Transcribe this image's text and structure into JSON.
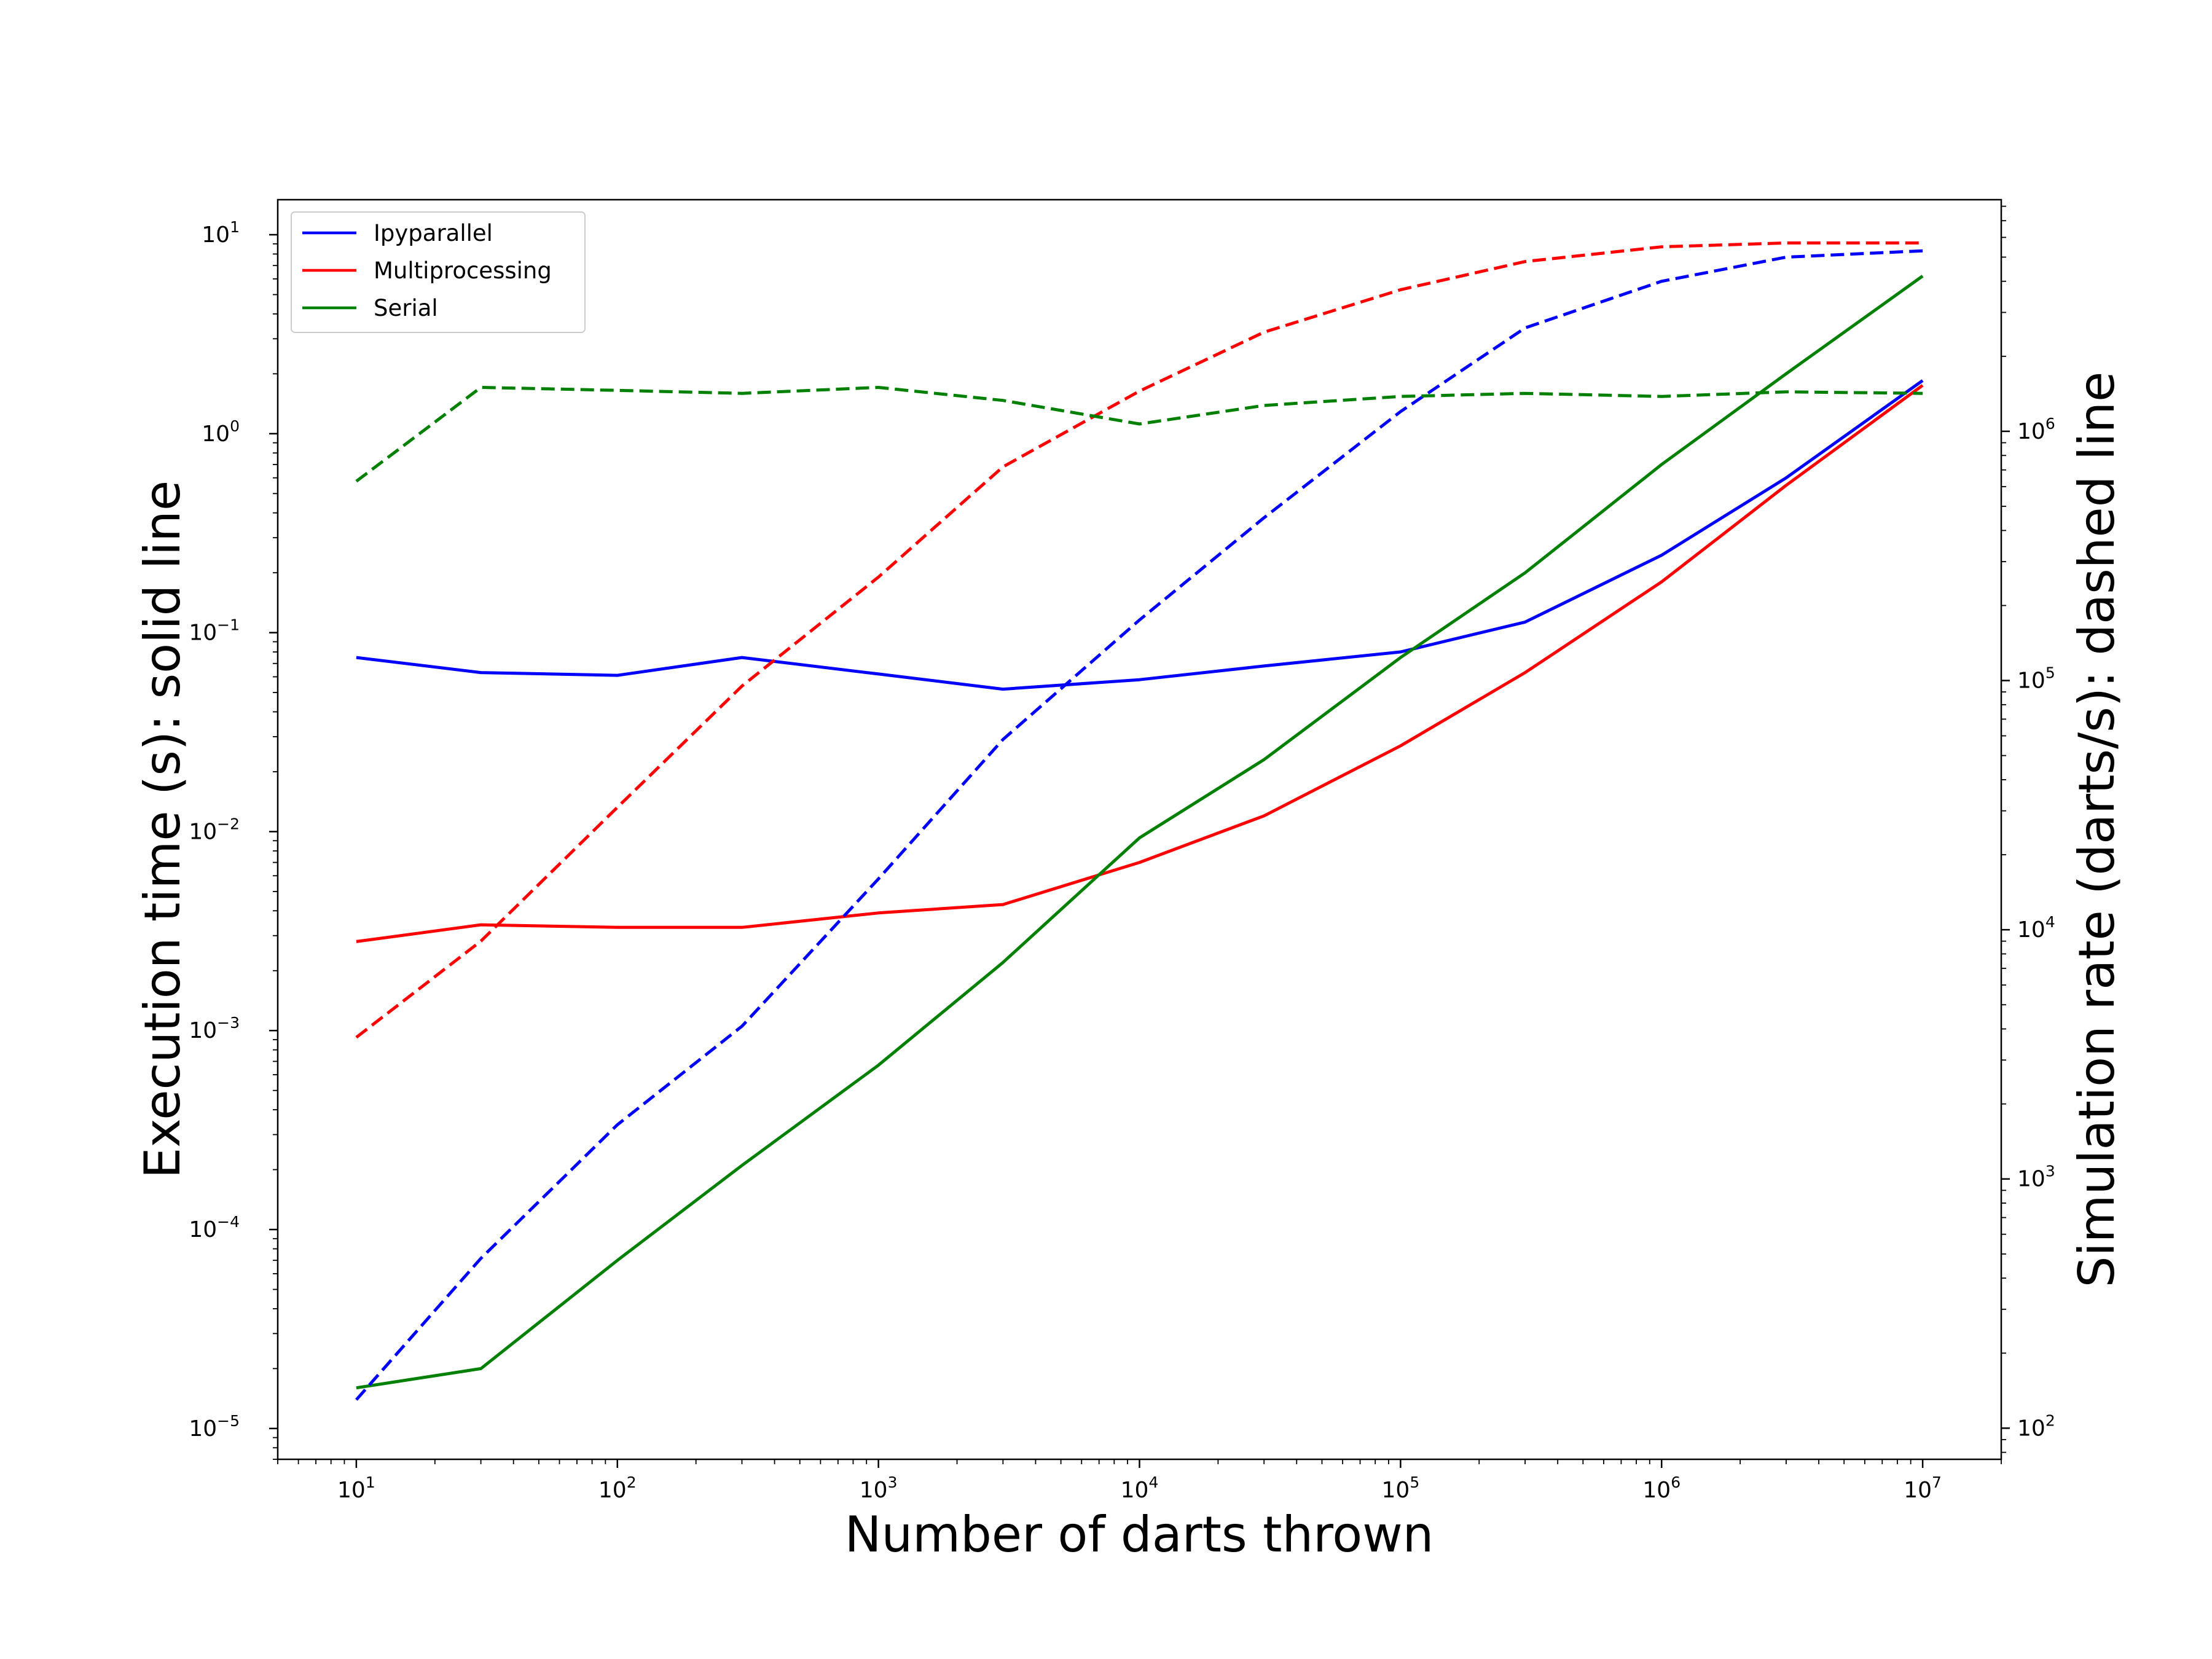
{
  "chart_data": {
    "type": "line",
    "xlabel": "Number of darts thrown",
    "ylabel_left": "Execution time (s): solid line",
    "ylabel_right": "Simulation rate (darts/s): dashed line",
    "x_scale": "log",
    "y_left_scale": "log",
    "y_right_scale": "log",
    "xlim": [
      5.0,
      20000000
    ],
    "ylim_left": [
      7e-06,
      15
    ],
    "ylim_right": [
      75,
      8500000
    ],
    "x_ticks": [
      {
        "base": "10",
        "exp": "1"
      },
      {
        "base": "10",
        "exp": "2"
      },
      {
        "base": "10",
        "exp": "3"
      },
      {
        "base": "10",
        "exp": "4"
      },
      {
        "base": "10",
        "exp": "5"
      },
      {
        "base": "10",
        "exp": "6"
      },
      {
        "base": "10",
        "exp": "7"
      }
    ],
    "y_left_ticks": [
      {
        "base": "10",
        "exp": "1"
      },
      {
        "base": "10",
        "exp": "0"
      },
      {
        "base": "10",
        "exp": "−1"
      },
      {
        "base": "10",
        "exp": "−2"
      },
      {
        "base": "10",
        "exp": "−3"
      },
      {
        "base": "10",
        "exp": "−4"
      },
      {
        "base": "10",
        "exp": "−5"
      }
    ],
    "y_right_ticks": [
      {
        "base": "10",
        "exp": "2"
      },
      {
        "base": "10",
        "exp": "3"
      },
      {
        "base": "10",
        "exp": "4"
      },
      {
        "base": "10",
        "exp": "5"
      },
      {
        "base": "10",
        "exp": "6"
      }
    ],
    "legend_position": "top-left",
    "grid": false,
    "x": [
      10,
      30,
      100,
      300,
      1000,
      3000,
      10000,
      30000,
      100000,
      300000,
      1000000,
      3000000,
      10000000
    ],
    "series": [
      {
        "name": "Ipyparallel",
        "color": "#0000ff",
        "axis": "left",
        "style": "solid",
        "values": [
          0.075,
          0.063,
          0.061,
          0.075,
          0.062,
          0.052,
          0.058,
          0.068,
          0.08,
          0.113,
          0.245,
          0.6,
          1.85
        ]
      },
      {
        "name": "Multiprocessing",
        "color": "#ff0000",
        "axis": "left",
        "style": "solid",
        "values": [
          0.0028,
          0.0034,
          0.0033,
          0.0033,
          0.0039,
          0.0043,
          0.007,
          0.012,
          0.027,
          0.063,
          0.18,
          0.55,
          1.75
        ]
      },
      {
        "name": "Serial",
        "color": "#008000",
        "axis": "left",
        "style": "solid",
        "values": [
          1.6e-05,
          2e-05,
          7e-05,
          0.00021,
          0.00067,
          0.0022,
          0.0093,
          0.023,
          0.075,
          0.2,
          0.7,
          2.0,
          6.2
        ]
      },
      {
        "name": "Ipyparallel",
        "color": "#0000ff",
        "axis": "right",
        "style": "dashed",
        "values": [
          130,
          480,
          1650,
          4100,
          16000,
          58000,
          175000,
          450000,
          1200000,
          2600000,
          4000000,
          5000000,
          5300000
        ]
      },
      {
        "name": "Multiprocessing",
        "color": "#ff0000",
        "axis": "right",
        "style": "dashed",
        "values": [
          3700,
          9000,
          31000,
          95000,
          260000,
          720000,
          1450000,
          2500000,
          3700000,
          4800000,
          5500000,
          5700000,
          5700000
        ]
      },
      {
        "name": "Serial",
        "color": "#008000",
        "axis": "right",
        "style": "dashed",
        "values": [
          630000,
          1500000,
          1460000,
          1420000,
          1500000,
          1330000,
          1070000,
          1270000,
          1380000,
          1420000,
          1380000,
          1440000,
          1420000
        ]
      }
    ],
    "legend": [
      "Ipyparallel",
      "Multiprocessing",
      "Serial"
    ]
  }
}
